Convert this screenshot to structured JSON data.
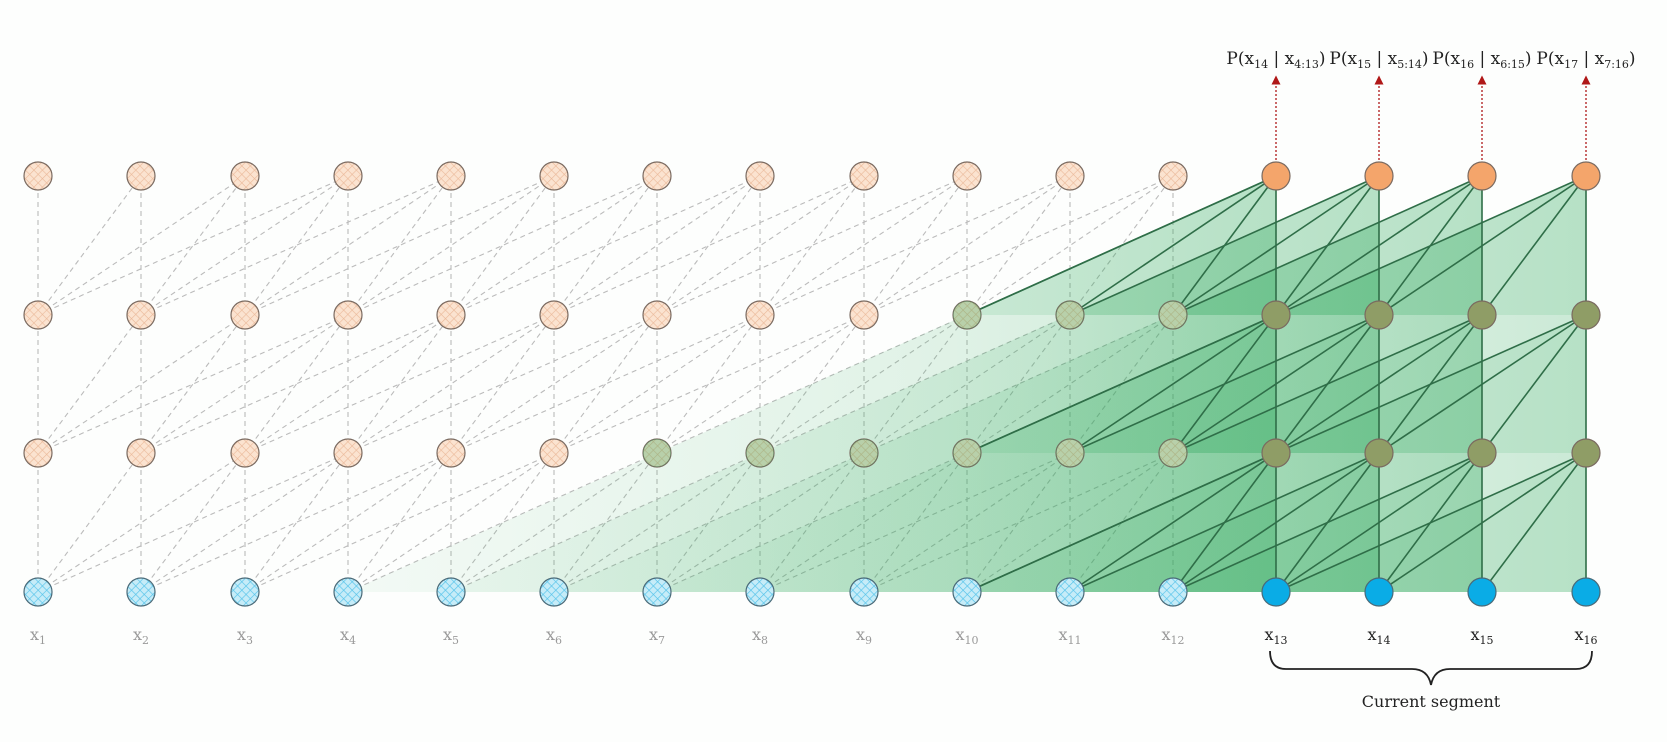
{
  "x_labels": [
    {
      "base": "x",
      "sub": "1",
      "active": false
    },
    {
      "base": "x",
      "sub": "2",
      "active": false
    },
    {
      "base": "x",
      "sub": "3",
      "active": false
    },
    {
      "base": "x",
      "sub": "4",
      "active": false
    },
    {
      "base": "x",
      "sub": "5",
      "active": false
    },
    {
      "base": "x",
      "sub": "6",
      "active": false
    },
    {
      "base": "x",
      "sub": "7",
      "active": false
    },
    {
      "base": "x",
      "sub": "8",
      "active": false
    },
    {
      "base": "x",
      "sub": "9",
      "active": false
    },
    {
      "base": "x",
      "sub": "10",
      "active": false
    },
    {
      "base": "x",
      "sub": "11",
      "active": false
    },
    {
      "base": "x",
      "sub": "12",
      "active": false
    },
    {
      "base": "x",
      "sub": "13",
      "active": true
    },
    {
      "base": "x",
      "sub": "14",
      "active": true
    },
    {
      "base": "x",
      "sub": "15",
      "active": true
    },
    {
      "base": "x",
      "sub": "16",
      "active": true
    }
  ],
  "outputs": [
    {
      "prefix": "P(x",
      "target": "14",
      "mid": " | x",
      "context": "4:13",
      "suffix": ")"
    },
    {
      "prefix": "P(x",
      "target": "15",
      "mid": " | x",
      "context": "5:14",
      "suffix": ")"
    },
    {
      "prefix": "P(x",
      "target": "16",
      "mid": " | x",
      "context": "6:15",
      "suffix": ")"
    },
    {
      "prefix": "P(x",
      "target": "17",
      "mid": " | x",
      "context": "7:16",
      "suffix": ")"
    }
  ],
  "segment_label": "Current segment",
  "colors": {
    "input_node": "#0aace6",
    "input_node_faded": "#a9def2",
    "hidden_node": "#f4a56b",
    "hidden_node_faded": "#f7d8bf",
    "green_node": "#8f9d66",
    "attention_fill": "#2ca85a",
    "attention_edge": "#2f6e48",
    "faded_edge": "#bbbbbb",
    "output_arrow": "#b01818"
  }
}
